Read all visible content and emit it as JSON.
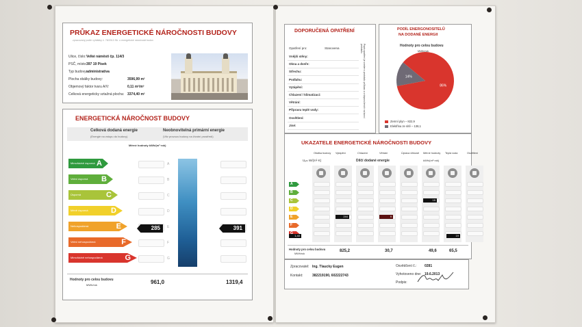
{
  "left_certificate": {
    "title": "PRŮKAZ ENERGETICKÉ NÁROČNOSTI BUDOVY",
    "subtitle": "zpracovaný podle vyhlášky č. 78/2013 Sb. o energetické náročnosti budov",
    "building_info": [
      {
        "label": "Ulice, číslo:",
        "value": "Velké náměstí čp. 114/3"
      },
      {
        "label": "PSČ, místo:",
        "value": "397 19 Písek"
      },
      {
        "label": "Typ budovy:",
        "value": "administrativa"
      },
      {
        "label": "Plocha obálky budovy:",
        "value": "3596,99 m²"
      },
      {
        "label": "Objemový faktor tvaru A/V:",
        "value": "0,11 m²/m³"
      },
      {
        "label": "Celková energeticky vztažná plocha:",
        "value": "3374,40 m²"
      }
    ],
    "rating_title": "ENERGETICKÁ NÁROČNOST BUDOVY",
    "col1_title": "Celková dodaná energie",
    "col1_sub": "(Energie na vstupu do budovy)",
    "col2_title": "Neobnovitelná primární energie",
    "col2_sub": "(Vliv provozu budovy na životní prostředí)",
    "units": "Měrné hodnoty   kWh/(m²·rok)",
    "classes": [
      {
        "letter": "A",
        "label": "Mimořádně úsporná",
        "color": "#2f9a3e",
        "width": 58
      },
      {
        "letter": "B",
        "label": "Velmi úsporná",
        "color": "#5fae3b",
        "width": 65
      },
      {
        "letter": "C",
        "label": "Úsporná",
        "color": "#a9c43a",
        "width": 72
      },
      {
        "letter": "D",
        "label": "Méně úsporná",
        "color": "#f1d02a",
        "width": 79
      },
      {
        "letter": "E",
        "label": "Nehospodárná",
        "color": "#f0a22a",
        "width": 86
      },
      {
        "letter": "F",
        "label": "Velmi nehospodárná",
        "color": "#e86a2a",
        "width": 93
      },
      {
        "letter": "G",
        "label": "Mimořádně nehospodárná",
        "color": "#d9352d",
        "width": 100
      }
    ],
    "scale_letters": [
      "A",
      "B",
      "C",
      "D",
      "E",
      "F",
      "G"
    ],
    "marker_delivered": "285",
    "marker_primary": "391",
    "footer_label": "Hodnoty pro celou budovu",
    "footer_unit": "MWh/rok",
    "total_delivered": "961,0",
    "total_primary": "1319,4"
  },
  "recommendations": {
    "title": "DOPORUČENÁ OPATŘENÍ",
    "header_label": "Opatření pro:",
    "header_value": "Stanovena",
    "rows": [
      "Vnější stěny:",
      "Okna a dveře:",
      "Střechu:",
      "Podlahu:",
      "Vytápění:",
      "Chlazení / klimatizaci:",
      "Větrání:",
      "Přípravu teplé vody:",
      "Osvětlení:",
      "Jiné:"
    ],
    "note": "Popis opatření je uveden v protokolu průkazu a v doporučeních na konci protokolu"
  },
  "energy_share": {
    "title_line1": "PODÍL ENERGONOSITELŮ",
    "title_line2": "NA DODANÉ ENERGII",
    "chart_title": "Hodnoty pro celou budovu",
    "chart_unit": "MWh/rok",
    "chart_data": {
      "type": "pie",
      "series": [
        {
          "name": "Zemní plyn – 822,9",
          "value": 86,
          "color": "#d9352d"
        },
        {
          "name": "Elektřina ze sítě – 138,1",
          "value": 14,
          "color": "#6f6a75"
        }
      ],
      "data_labels": [
        "86%",
        "14%"
      ]
    }
  },
  "indicators": {
    "title": "UKAZATELE ENERGETICKÉ NÁROČNOSTI BUDOVY",
    "columns": [
      "Obálka budovy",
      "Vytápění",
      "Chlazení",
      "Větrání",
      "Úprava vlhkosti",
      "Měrné hodnoty",
      "Teplá voda",
      "Osvětlení"
    ],
    "uem_label": "Uₑₘ W/(m²·K)",
    "sub_title": "Dílčí dodané energie",
    "sub_units": "kWh/(m²·rok)",
    "classes": [
      {
        "letter": "A",
        "color": "#2f9a3e"
      },
      {
        "letter": "B",
        "color": "#5fae3b"
      },
      {
        "letter": "C",
        "color": "#a9c43a"
      },
      {
        "letter": "D",
        "color": "#f1d02a"
      },
      {
        "letter": "E",
        "color": "#f0a22a"
      },
      {
        "letter": "F",
        "color": "#e86a2a"
      },
      {
        "letter": "G",
        "color": "#d9352d"
      }
    ],
    "marks": [
      {
        "text": "1,40",
        "color": "#111"
      },
      {
        "text": "244",
        "color": "#111"
      },
      {
        "text": "9",
        "color": "#5a1010"
      },
      {
        "text": "15",
        "color": "#111"
      },
      {
        "text": "19",
        "color": "#111"
      }
    ],
    "footer_label": "Hodnoty pro celou budovu",
    "footer_unit": "MWh/rok",
    "totals": [
      "825,2",
      "30,7",
      "49,6",
      "65,5"
    ]
  },
  "contact": {
    "prepared_label": "Zpracovatel:",
    "prepared_value": "Ing. Tlaucky Eugen",
    "contact_label": "Kontakt:",
    "contact_value": "382219190, 602222743",
    "cert_label": "Osvědčení č.:",
    "cert_value": "0281",
    "date_label": "Vyhotoveno dne:",
    "date_value": "19.6.2013",
    "sign_label": "Podpis:"
  }
}
